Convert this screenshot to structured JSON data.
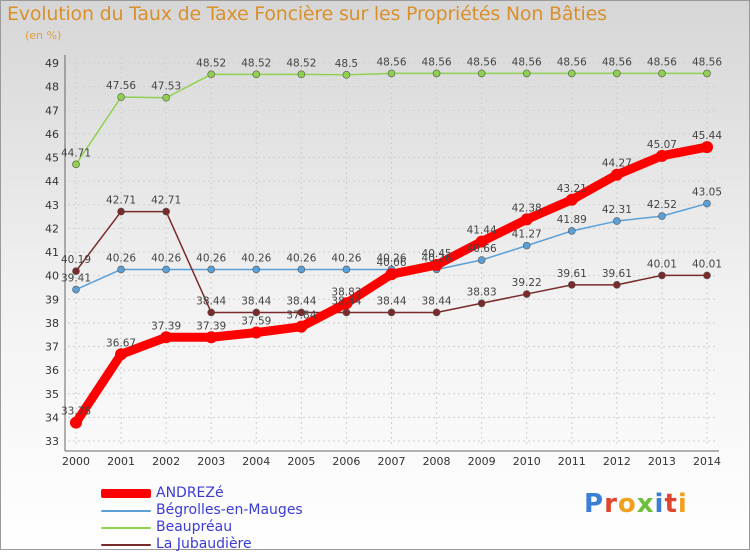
{
  "chart_data": {
    "type": "line",
    "title": "Evolution du Taux de Taxe Foncière sur les Propriétés Non Bâties",
    "unit_label": "(en %)",
    "x": [
      "2000",
      "2001",
      "2002",
      "2003",
      "2004",
      "2005",
      "2006",
      "2007",
      "2008",
      "2009",
      "2010",
      "2011",
      "2012",
      "2013",
      "2014"
    ],
    "ylim": [
      33,
      49
    ],
    "yticks": [
      "33",
      "34",
      "35",
      "36",
      "37",
      "38",
      "39",
      "40",
      "41",
      "42",
      "43",
      "44",
      "45",
      "46",
      "47",
      "48",
      "49"
    ],
    "grid": true,
    "legend_position": "bottom-left",
    "series": [
      {
        "name": "ANDREZé",
        "color": "#ff0000",
        "values": [
          33.78,
          36.67,
          37.39,
          37.39,
          37.59,
          37.84,
          38.83,
          40.06,
          40.45,
          41.44,
          42.38,
          43.21,
          44.27,
          45.07,
          45.44
        ],
        "labels": [
          "33.78",
          "36.67",
          "37.39",
          "37.39",
          "37.59",
          "37.84",
          "38.83",
          "40.06",
          "40.45",
          "41.44",
          "42.38",
          "43.21",
          "44.27",
          "45.07",
          "45.44"
        ]
      },
      {
        "name": "Bégrolles-en-Mauges",
        "color": "#5aa0d8",
        "values": [
          39.41,
          40.26,
          40.26,
          40.26,
          40.26,
          40.26,
          40.26,
          40.26,
          40.26,
          40.66,
          41.27,
          41.89,
          42.31,
          42.52,
          43.05
        ],
        "labels": [
          "39.41",
          "40.26",
          "40.26",
          "40.26",
          "40.26",
          "40.26",
          "40.26",
          "40.26",
          "40.26",
          "40.66",
          "41.27",
          "41.89",
          "42.31",
          "42.52",
          "43.05"
        ]
      },
      {
        "name": "Beaupréau",
        "color": "#8fd14f",
        "values": [
          44.71,
          47.56,
          47.53,
          48.52,
          48.52,
          48.52,
          48.5,
          48.56,
          48.56,
          48.56,
          48.56,
          48.56,
          48.56,
          48.56,
          48.56
        ],
        "labels": [
          "44.71",
          "47.56",
          "47.53",
          "48.52",
          "48.52",
          "48.52",
          "48.5",
          "48.56",
          "48.56",
          "48.56",
          "48.56",
          "48.56",
          "48.56",
          "48.56",
          "48.56"
        ]
      },
      {
        "name": "La Jubaudière",
        "color": "#7a2a2a",
        "values": [
          40.19,
          42.71,
          42.71,
          38.44,
          38.44,
          38.44,
          38.44,
          38.44,
          38.44,
          38.83,
          39.22,
          39.61,
          39.61,
          40.01,
          40.01
        ],
        "labels": [
          "40.19",
          "42.71",
          "42.71",
          "38.44",
          "38.44",
          "38.44",
          "38.44",
          "38.44",
          "38.44",
          "38.83",
          "39.22",
          "39.61",
          "39.61",
          "40.01",
          "40.01"
        ]
      }
    ]
  },
  "legend": {
    "items": [
      {
        "label": "ANDREZé",
        "color": "#ff0000"
      },
      {
        "label": "Bégrolles-en-Mauges",
        "color": "#5aa0d8"
      },
      {
        "label": "Beaupréau",
        "color": "#8fd14f"
      },
      {
        "label": "La Jubaudière",
        "color": "#7a2a2a"
      }
    ]
  },
  "logo": {
    "letters": [
      "P",
      "r",
      "o",
      "x",
      "i",
      "t",
      "i"
    ],
    "colors": [
      "#3a7fd5",
      "#e0462d",
      "#f0a020",
      "#6cbf3a",
      "#3a7fd5",
      "#e0462d",
      "#f0a020"
    ]
  }
}
